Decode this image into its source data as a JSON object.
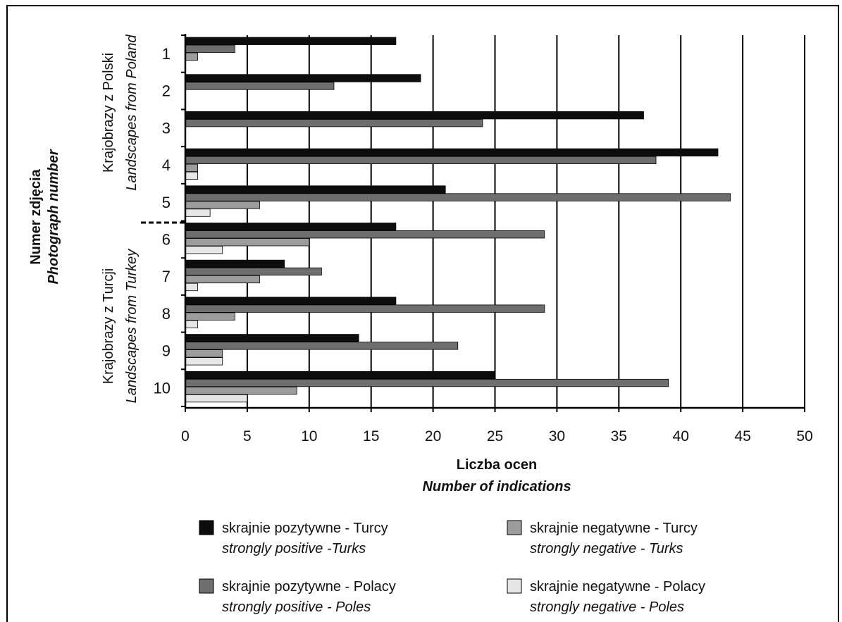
{
  "chart_data": {
    "type": "bar",
    "orientation": "horizontal",
    "categories": [
      "1",
      "2",
      "3",
      "4",
      "5",
      "6",
      "7",
      "8",
      "9",
      "10"
    ],
    "series": [
      {
        "name": "skrajnie pozytywne - Turcy",
        "name_en": "strongly positive -Turks",
        "color": "#0d0d0d",
        "values": [
          17,
          19,
          37,
          43,
          21,
          17,
          8,
          17,
          14,
          25
        ]
      },
      {
        "name": "skrajnie pozytywne - Polacy",
        "name_en": "strongly positive - Poles",
        "color": "#6e6e6e",
        "values": [
          4,
          12,
          24,
          38,
          44,
          29,
          11,
          29,
          22,
          39
        ]
      },
      {
        "name": "skrajnie negatywne - Turcy",
        "name_en": "strongly negative - Turks",
        "color": "#9c9c9c",
        "values": [
          1,
          0,
          0,
          1,
          6,
          10,
          6,
          4,
          3,
          9
        ]
      },
      {
        "name": "skrajnie negatywne - Polacy",
        "name_en": "strongly negative - Poles",
        "color": "#e6e6e6",
        "values": [
          0,
          0,
          0,
          1,
          2,
          3,
          1,
          1,
          3,
          5
        ]
      }
    ],
    "xlim": [
      0,
      50
    ],
    "xticks": [
      0,
      5,
      10,
      15,
      20,
      25,
      30,
      35,
      40,
      45,
      50
    ],
    "xlabel": "Liczba ocen",
    "xlabel_en": "Number of indications",
    "ylabel": "Numer zdjęcia",
    "ylabel_en": "Photograph number",
    "groups": [
      {
        "label": "Krajobrazy z Polski",
        "label_en": "Landscapes from Poland"
      },
      {
        "label": "Krajobrazy z Turcji",
        "label_en": "Landscapes from Turkey"
      }
    ],
    "grid": "vertical",
    "legend_position": "bottom"
  }
}
